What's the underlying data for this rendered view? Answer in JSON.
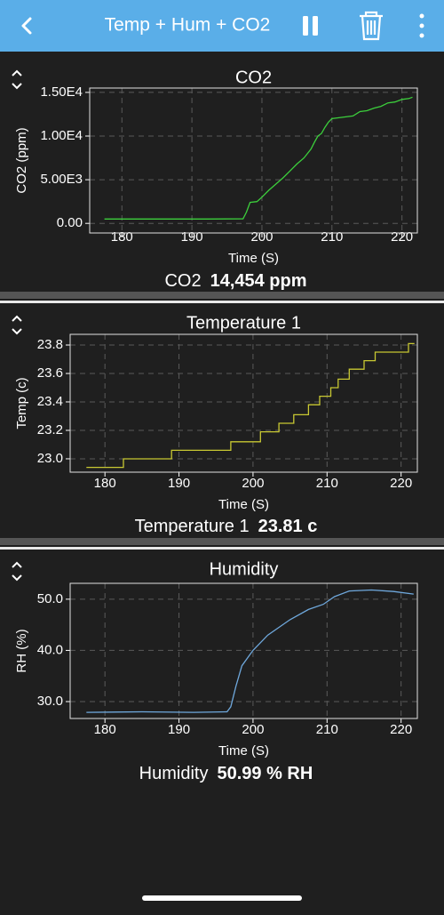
{
  "header": {
    "title": "Temp + Hum + CO2"
  },
  "chart_data": [
    {
      "type": "line",
      "title": "CO2",
      "x_label": "Time (S)",
      "y_label": "CO2 (ppm)",
      "color": "#3ccf3c",
      "x": [
        177.5,
        185,
        192,
        197.3,
        197.8,
        198.3,
        199.3,
        200,
        201,
        202,
        203,
        204,
        205,
        206,
        207,
        207.5,
        208,
        208.5,
        209,
        209.5,
        210,
        211,
        212,
        213,
        214,
        215,
        216,
        217,
        218,
        219,
        220,
        221,
        221.5
      ],
      "values": [
        500,
        500,
        500,
        520,
        1300,
        2400,
        2500,
        3000,
        3800,
        4500,
        5200,
        6000,
        6800,
        7500,
        8500,
        9300,
        10000,
        10300,
        11000,
        11600,
        12000,
        12100,
        12200,
        12300,
        12800,
        12900,
        13200,
        13400,
        13800,
        13900,
        14200,
        14300,
        14454
      ],
      "xlim": [
        175.4,
        222.2
      ],
      "ylim": [
        -1100,
        15500
      ],
      "xticks": [
        180,
        190,
        200,
        210,
        220
      ],
      "yticks": [
        {
          "value": 0,
          "label": "0.00"
        },
        {
          "value": 5000,
          "label": "5.00E3"
        },
        {
          "value": 10000,
          "label": "1.00E4"
        },
        {
          "value": 15000,
          "label": "1.50E4"
        }
      ],
      "grid": true
    },
    {
      "type": "line",
      "title": "Temperature 1",
      "x_label": "Time (S)",
      "y_label": "Temp (c)",
      "color": "#c8c832",
      "x": [
        177.5,
        182.5,
        182.5,
        189,
        189,
        197,
        197,
        201,
        201,
        203.5,
        203.5,
        205.5,
        205.5,
        207.5,
        207.5,
        209,
        209,
        210.5,
        210.5,
        211.5,
        211.5,
        213,
        213,
        215,
        215,
        216.5,
        216.5,
        221,
        221,
        221.8
      ],
      "values": [
        22.94,
        22.94,
        23.0,
        23.0,
        23.06,
        23.06,
        23.12,
        23.12,
        23.19,
        23.19,
        23.25,
        23.25,
        23.31,
        23.31,
        23.38,
        23.38,
        23.44,
        23.44,
        23.5,
        23.5,
        23.56,
        23.56,
        23.63,
        23.63,
        23.69,
        23.69,
        23.75,
        23.75,
        23.81,
        23.81
      ],
      "xlim": [
        175.3,
        222.2
      ],
      "ylim": [
        22.906,
        23.875
      ],
      "xticks": [
        180,
        190,
        200,
        210,
        220
      ],
      "yticks": [
        {
          "value": 23,
          "label": "23.0"
        },
        23.2,
        23.4,
        23.6,
        23.8
      ],
      "grid": true
    },
    {
      "type": "line",
      "title": "Humidity",
      "x_label": "Time (S)",
      "y_label": "RH (%)",
      "color": "#6fa8dc",
      "x": [
        177.5,
        185,
        192,
        196.5,
        197,
        197.7,
        198.5,
        200,
        202,
        205,
        207.5,
        209.5,
        211,
        213,
        216,
        219,
        221.7
      ],
      "values": [
        27.9,
        28.0,
        27.9,
        28.0,
        29,
        33,
        37,
        40,
        43,
        46,
        48,
        49,
        50.5,
        51.6,
        51.8,
        51.5,
        50.99
      ],
      "xlim": [
        175.3,
        222.2
      ],
      "ylim": [
        26.7,
        53.1
      ],
      "xticks": [
        180,
        190,
        200,
        210,
        220
      ],
      "yticks": [
        {
          "value": 30,
          "label": "30.0"
        },
        {
          "value": 40,
          "label": "40.0"
        },
        {
          "value": 50,
          "label": "50.0"
        }
      ],
      "grid": true
    }
  ],
  "readouts": [
    {
      "label": "CO2",
      "value": "14,454 ppm"
    },
    {
      "label": "Temperature 1",
      "value": "23.81 c"
    },
    {
      "label": "Humidity",
      "value": "50.99 % RH"
    }
  ]
}
